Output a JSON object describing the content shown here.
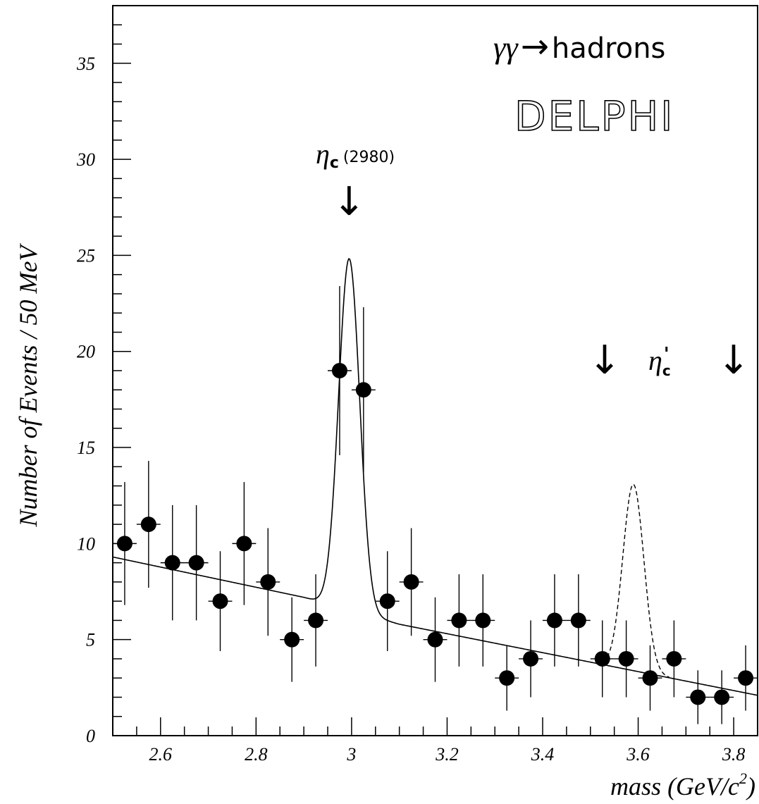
{
  "chart_data": {
    "type": "scatter",
    "xlabel": "mass (GeV/c",
    "xlabel_sup": "2",
    "xlabel_close": ")",
    "ylabel": "Number of Events / 50 MeV",
    "xlim": [
      2.5,
      3.85
    ],
    "ylim": [
      0,
      38
    ],
    "x_ticks": [
      2.6,
      2.8,
      3.0,
      3.2,
      3.4,
      3.6,
      3.8
    ],
    "x_tick_labels": [
      "2.6",
      "2.8",
      "3",
      "3.2",
      "3.4",
      "3.6",
      "3.8"
    ],
    "y_ticks": [
      0,
      5,
      10,
      15,
      20,
      25,
      30,
      35
    ],
    "y_tick_labels": [
      "0",
      "5",
      "10",
      "15",
      "20",
      "25",
      "30",
      "35"
    ],
    "grid": false,
    "bin_width": 0.05,
    "points": [
      {
        "x": 2.525,
        "y": 10,
        "err": 3.2
      },
      {
        "x": 2.575,
        "y": 11,
        "err": 3.3
      },
      {
        "x": 2.625,
        "y": 9,
        "err": 3.0
      },
      {
        "x": 2.675,
        "y": 9,
        "err": 3.0
      },
      {
        "x": 2.725,
        "y": 7,
        "err": 2.6
      },
      {
        "x": 2.775,
        "y": 10,
        "err": 3.2
      },
      {
        "x": 2.825,
        "y": 8,
        "err": 2.8
      },
      {
        "x": 2.875,
        "y": 5,
        "err": 2.2
      },
      {
        "x": 2.925,
        "y": 6,
        "err": 2.4
      },
      {
        "x": 2.975,
        "y": 19,
        "err": 4.4
      },
      {
        "x": 3.025,
        "y": 18,
        "err": 4.3
      },
      {
        "x": 3.075,
        "y": 7,
        "err": 2.6
      },
      {
        "x": 3.125,
        "y": 8,
        "err": 2.8
      },
      {
        "x": 3.175,
        "y": 5,
        "err": 2.2
      },
      {
        "x": 3.225,
        "y": 6,
        "err": 2.4
      },
      {
        "x": 3.275,
        "y": 6,
        "err": 2.4
      },
      {
        "x": 3.325,
        "y": 3,
        "err": 1.7
      },
      {
        "x": 3.375,
        "y": 4,
        "err": 2.0
      },
      {
        "x": 3.425,
        "y": 6,
        "err": 2.4
      },
      {
        "x": 3.475,
        "y": 6,
        "err": 2.4
      },
      {
        "x": 3.525,
        "y": 4,
        "err": 2.0
      },
      {
        "x": 3.575,
        "y": 4,
        "err": 2.0
      },
      {
        "x": 3.625,
        "y": 3,
        "err": 1.7
      },
      {
        "x": 3.675,
        "y": 4,
        "err": 2.0
      },
      {
        "x": 3.725,
        "y": 2,
        "err": 1.4
      },
      {
        "x": 3.775,
        "y": 2,
        "err": 1.4
      },
      {
        "x": 3.825,
        "y": 3,
        "err": 1.7
      }
    ],
    "background_fit": {
      "x": [
        2.5,
        2.9,
        3.1,
        3.85
      ],
      "y": [
        9.3,
        7.2,
        5.8,
        2.1
      ]
    },
    "signal_peak": {
      "center": 2.995,
      "sigma": 0.022,
      "amplitude": 18.3
    },
    "expected_peak": {
      "center": 3.59,
      "sigma": 0.022,
      "amplitude": 9.7,
      "range": [
        3.525,
        3.665
      ]
    },
    "annotations": {
      "process_gamma": "γγ",
      "process_arrow": "→",
      "process_text": "hadrons",
      "experiment": "DELPHI",
      "etac_symbol": "η",
      "etac_sub": "c",
      "etac_mass": "(2980)",
      "etac_arrow": "↓",
      "etacp_symbol": "η",
      "etacp_sub": "c",
      "etacp_prime": "'",
      "arrow_left": "↓",
      "arrow_right": "↓"
    },
    "arrow_positions": {
      "etac": 2.995,
      "etacp_left": 3.53,
      "etacp_right": 3.8
    }
  }
}
